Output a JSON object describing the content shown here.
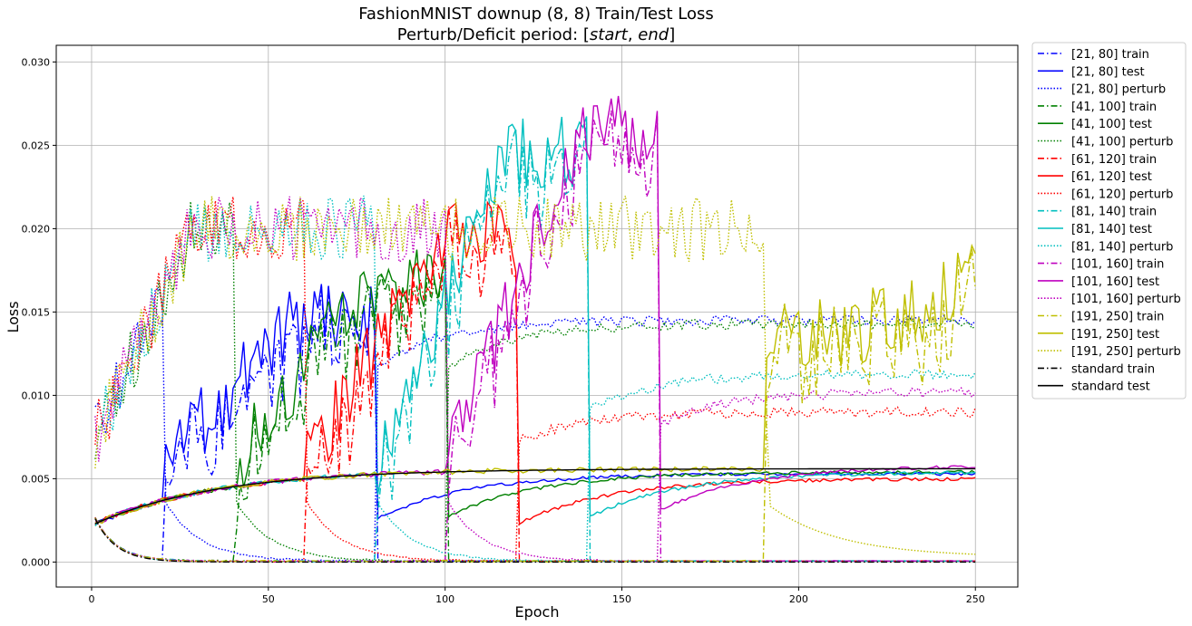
{
  "chart_data": {
    "type": "line",
    "title": "FashionMNIST downup (8, 8) Train/Test Loss",
    "subtitle": "Perturb/Deficit period: [start, end]",
    "subtitle_parts": [
      "Perturb/Deficit period: [",
      "start",
      ", ",
      "end",
      "]"
    ],
    "xlabel": "Epoch",
    "ylabel": "Loss",
    "xlim": [
      -10,
      262
    ],
    "ylim": [
      -0.0015,
      0.031
    ],
    "xticks": [
      0,
      50,
      100,
      150,
      200,
      250
    ],
    "xtick_labels": [
      "0",
      "50",
      "100",
      "150",
      "200",
      "250"
    ],
    "yticks": [
      0,
      0.005,
      0.01,
      0.015,
      0.02,
      0.025,
      0.03
    ],
    "ytick_labels": [
      "0.000",
      "0.005",
      "0.010",
      "0.015",
      "0.020",
      "0.025",
      "0.030"
    ],
    "grid": true,
    "legend_placement": "outside-right-top",
    "runs": [
      {
        "label": "[21, 80]",
        "start": 21,
        "end": 80,
        "color": "#0000ff",
        "peak_test": 0.0145,
        "perturb_after": 0.0145,
        "final_test": 0.0053,
        "seed": 1
      },
      {
        "label": "[41, 100]",
        "start": 41,
        "end": 100,
        "color": "#008000",
        "peak_test": 0.0165,
        "perturb_after": 0.0143,
        "final_test": 0.0054,
        "seed": 2
      },
      {
        "label": "[61, 120]",
        "start": 61,
        "end": 120,
        "color": "#ff0000",
        "peak_test": 0.0195,
        "perturb_after": 0.009,
        "final_test": 0.005,
        "seed": 3
      },
      {
        "label": "[81, 140]",
        "start": 81,
        "end": 140,
        "color": "#00bfbf",
        "peak_test": 0.0245,
        "perturb_after": 0.0113,
        "final_test": 0.0054,
        "seed": 4
      },
      {
        "label": "[101, 160]",
        "start": 101,
        "end": 160,
        "color": "#bf00bf",
        "peak_test": 0.0258,
        "perturb_after": 0.0102,
        "final_test": 0.0058,
        "seed": 5
      },
      {
        "label": "[191, 250]",
        "start": 191,
        "end": 250,
        "color": "#bfbf00",
        "peak_test": 0.017,
        "perturb_after": 0.0225,
        "final_test": 0.0057,
        "seed": 6
      }
    ],
    "series": [
      {
        "name": "[21, 80] train",
        "color": "#0000ff",
        "style": "dashdot"
      },
      {
        "name": "[21, 80] test",
        "color": "#0000ff",
        "style": "solid"
      },
      {
        "name": "[21, 80] perturb",
        "color": "#0000ff",
        "style": "dotted"
      },
      {
        "name": "[41, 100] train",
        "color": "#008000",
        "style": "dashdot"
      },
      {
        "name": "[41, 100] test",
        "color": "#008000",
        "style": "solid"
      },
      {
        "name": "[41, 100] perturb",
        "color": "#008000",
        "style": "dotted"
      },
      {
        "name": "[61, 120] train",
        "color": "#ff0000",
        "style": "dashdot"
      },
      {
        "name": "[61, 120] test",
        "color": "#ff0000",
        "style": "solid"
      },
      {
        "name": "[61, 120] perturb",
        "color": "#ff0000",
        "style": "dotted"
      },
      {
        "name": "[81, 140] train",
        "color": "#00bfbf",
        "style": "dashdot"
      },
      {
        "name": "[81, 140] test",
        "color": "#00bfbf",
        "style": "solid"
      },
      {
        "name": "[81, 140] perturb",
        "color": "#00bfbf",
        "style": "dotted"
      },
      {
        "name": "[101, 160] train",
        "color": "#bf00bf",
        "style": "dashdot"
      },
      {
        "name": "[101, 160] test",
        "color": "#bf00bf",
        "style": "solid"
      },
      {
        "name": "[101, 160] perturb",
        "color": "#bf00bf",
        "style": "dotted"
      },
      {
        "name": "[191, 250] train",
        "color": "#bfbf00",
        "style": "dashdot"
      },
      {
        "name": "[191, 250] test",
        "color": "#bfbf00",
        "style": "solid"
      },
      {
        "name": "[191, 250] perturb",
        "color": "#bfbf00",
        "style": "dotted"
      },
      {
        "name": "standard train",
        "color": "#000000",
        "style": "dashdot"
      },
      {
        "name": "standard test",
        "color": "#000000",
        "style": "solid"
      }
    ]
  }
}
